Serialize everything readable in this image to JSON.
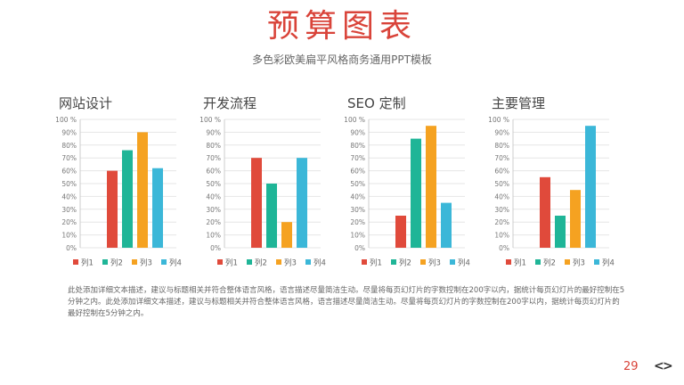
{
  "header": {
    "title": "预算图表",
    "subtitle": "多色彩欧美扁平风格商务通用PPT模板"
  },
  "body_text": "此处添加详细文本描述，建议与标题相关并符合整体语言风格，语言描述尽量简洁生动。尽量将每页幻灯片的字数控制在200字以内，据统计每页幻灯片的最好控制在5分钟之内。此处添加详细文本描述，建议与标题相关并符合整体语言风格，语言描述尽量简洁生动。尽量将每页幻灯片的字数控制在200字以内，据统计每页幻灯片的最好控制在5分钟之内。",
  "footer": {
    "page_number": "29",
    "prev_icon": "chevron-left-icon",
    "next_icon": "chevron-right-icon",
    "prev": "<",
    "next": ">"
  },
  "colors": {
    "列1": "#e04a3b",
    "列2": "#1fb597",
    "列3": "#f5a221",
    "列4": "#3bb7d8",
    "accent": "#d9443a"
  },
  "chart_data": [
    {
      "type": "bar",
      "title": "网站设计",
      "series": [
        {
          "name": "列1",
          "values": [
            60
          ]
        },
        {
          "name": "列2",
          "values": [
            76
          ]
        },
        {
          "name": "列3",
          "values": [
            90
          ]
        },
        {
          "name": "列4",
          "values": [
            62
          ]
        }
      ],
      "ylim": [
        0,
        100
      ],
      "yticks": [
        "0%",
        "10%",
        "20%",
        "30%",
        "40%",
        "50%",
        "60%",
        "70%",
        "80%",
        "90%",
        "100 %"
      ],
      "grid": true,
      "legend": "bottom"
    },
    {
      "type": "bar",
      "title": "开发流程",
      "series": [
        {
          "name": "列1",
          "values": [
            70
          ]
        },
        {
          "name": "列2",
          "values": [
            50
          ]
        },
        {
          "name": "列3",
          "values": [
            20
          ]
        },
        {
          "name": "列4",
          "values": [
            70
          ]
        }
      ],
      "ylim": [
        0,
        100
      ],
      "yticks": [
        "0%",
        "10%",
        "20%",
        "30%",
        "40%",
        "50%",
        "60%",
        "70%",
        "80%",
        "90%",
        "100 %"
      ],
      "grid": true,
      "legend": "bottom"
    },
    {
      "type": "bar",
      "title": "SEO 定制",
      "series": [
        {
          "name": "列1",
          "values": [
            25
          ]
        },
        {
          "name": "列2",
          "values": [
            85
          ]
        },
        {
          "name": "列3",
          "values": [
            95
          ]
        },
        {
          "name": "列4",
          "values": [
            35
          ]
        }
      ],
      "ylim": [
        0,
        100
      ],
      "yticks": [
        "0%",
        "10%",
        "20%",
        "30%",
        "40%",
        "50%",
        "60%",
        "70%",
        "80%",
        "90%",
        "100 %"
      ],
      "grid": true,
      "legend": "bottom"
    },
    {
      "type": "bar",
      "title": "主要管理",
      "series": [
        {
          "name": "列1",
          "values": [
            55
          ]
        },
        {
          "name": "列2",
          "values": [
            25
          ]
        },
        {
          "name": "列3",
          "values": [
            45
          ]
        },
        {
          "name": "列4",
          "values": [
            95
          ]
        }
      ],
      "ylim": [
        0,
        100
      ],
      "yticks": [
        "0%",
        "10%",
        "20%",
        "30%",
        "40%",
        "50%",
        "60%",
        "70%",
        "80%",
        "90%",
        "100 %"
      ],
      "grid": true,
      "legend": "bottom"
    }
  ]
}
